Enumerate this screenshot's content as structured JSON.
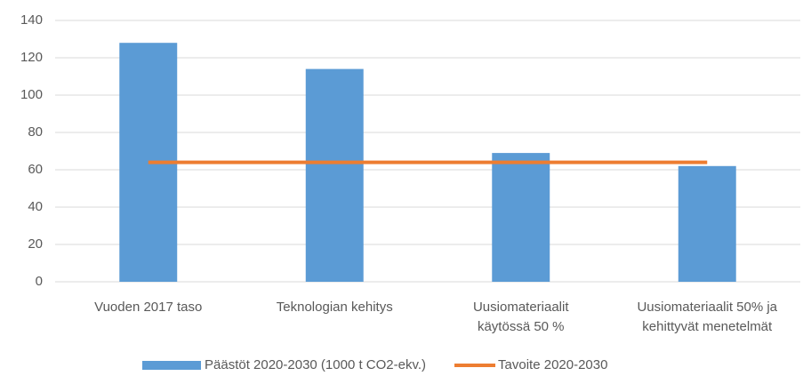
{
  "chart_data": {
    "type": "bar",
    "categories": [
      [
        "Vuoden 2017 taso"
      ],
      [
        "Teknologian kehitys"
      ],
      [
        "Uusiomateriaalit",
        "käytössä 50 %"
      ],
      [
        "Uusiomateriaalit 50% ja",
        "kehittyvät menetelmät"
      ]
    ],
    "series": [
      {
        "name": "Päästöt 2020-2030 (1000 t CO2-ekv.)",
        "type": "bar",
        "color": "#5b9bd5",
        "values": [
          128,
          114,
          69,
          62
        ]
      },
      {
        "name": "Tavoite 2020-2030",
        "type": "line",
        "color": "#ed7d31",
        "values": [
          64,
          64,
          64,
          64
        ]
      }
    ],
    "ylim": [
      0,
      140
    ],
    "yticks": [
      0,
      20,
      40,
      60,
      80,
      100,
      120,
      140
    ],
    "grid": true,
    "legend": "bottom"
  }
}
